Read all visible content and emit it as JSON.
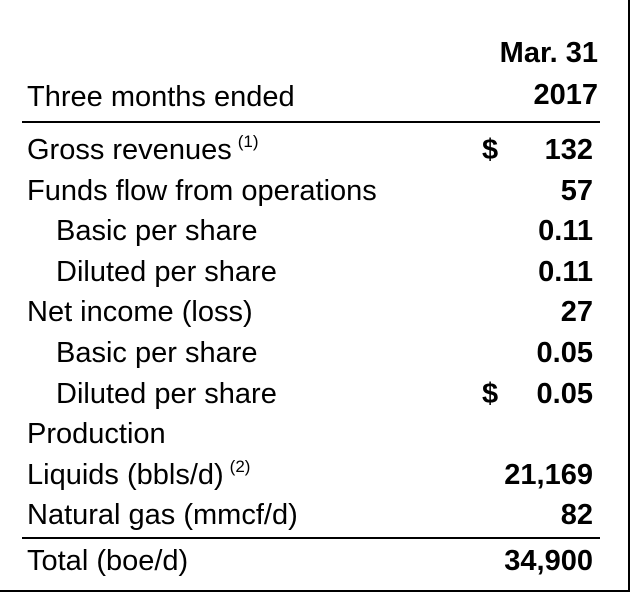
{
  "header": {
    "label": "Three months ended",
    "column_line1": "Mar. 31",
    "column_line2": "2017"
  },
  "rows": [
    {
      "label": "Gross revenues",
      "note": "(1)",
      "currency": "$",
      "value": "132"
    },
    {
      "label": "Funds flow from operations",
      "value": "57"
    },
    {
      "label": "Basic per share",
      "value": "0.11"
    },
    {
      "label": "Diluted per share",
      "value": "0.11"
    },
    {
      "label": "Net income (loss)",
      "value": "27"
    },
    {
      "label": "Basic per share",
      "value": "0.05"
    },
    {
      "label": "Diluted per share",
      "currency": "$",
      "value": "0.05"
    },
    {
      "label": "Production"
    },
    {
      "label": "Liquids (bbls/d)",
      "note": "(2)",
      "value": "21,169"
    },
    {
      "label": "Natural gas (mmcf/d)",
      "value": "82"
    }
  ],
  "total": {
    "label": "Total (boe/d)",
    "value": "34,900"
  }
}
